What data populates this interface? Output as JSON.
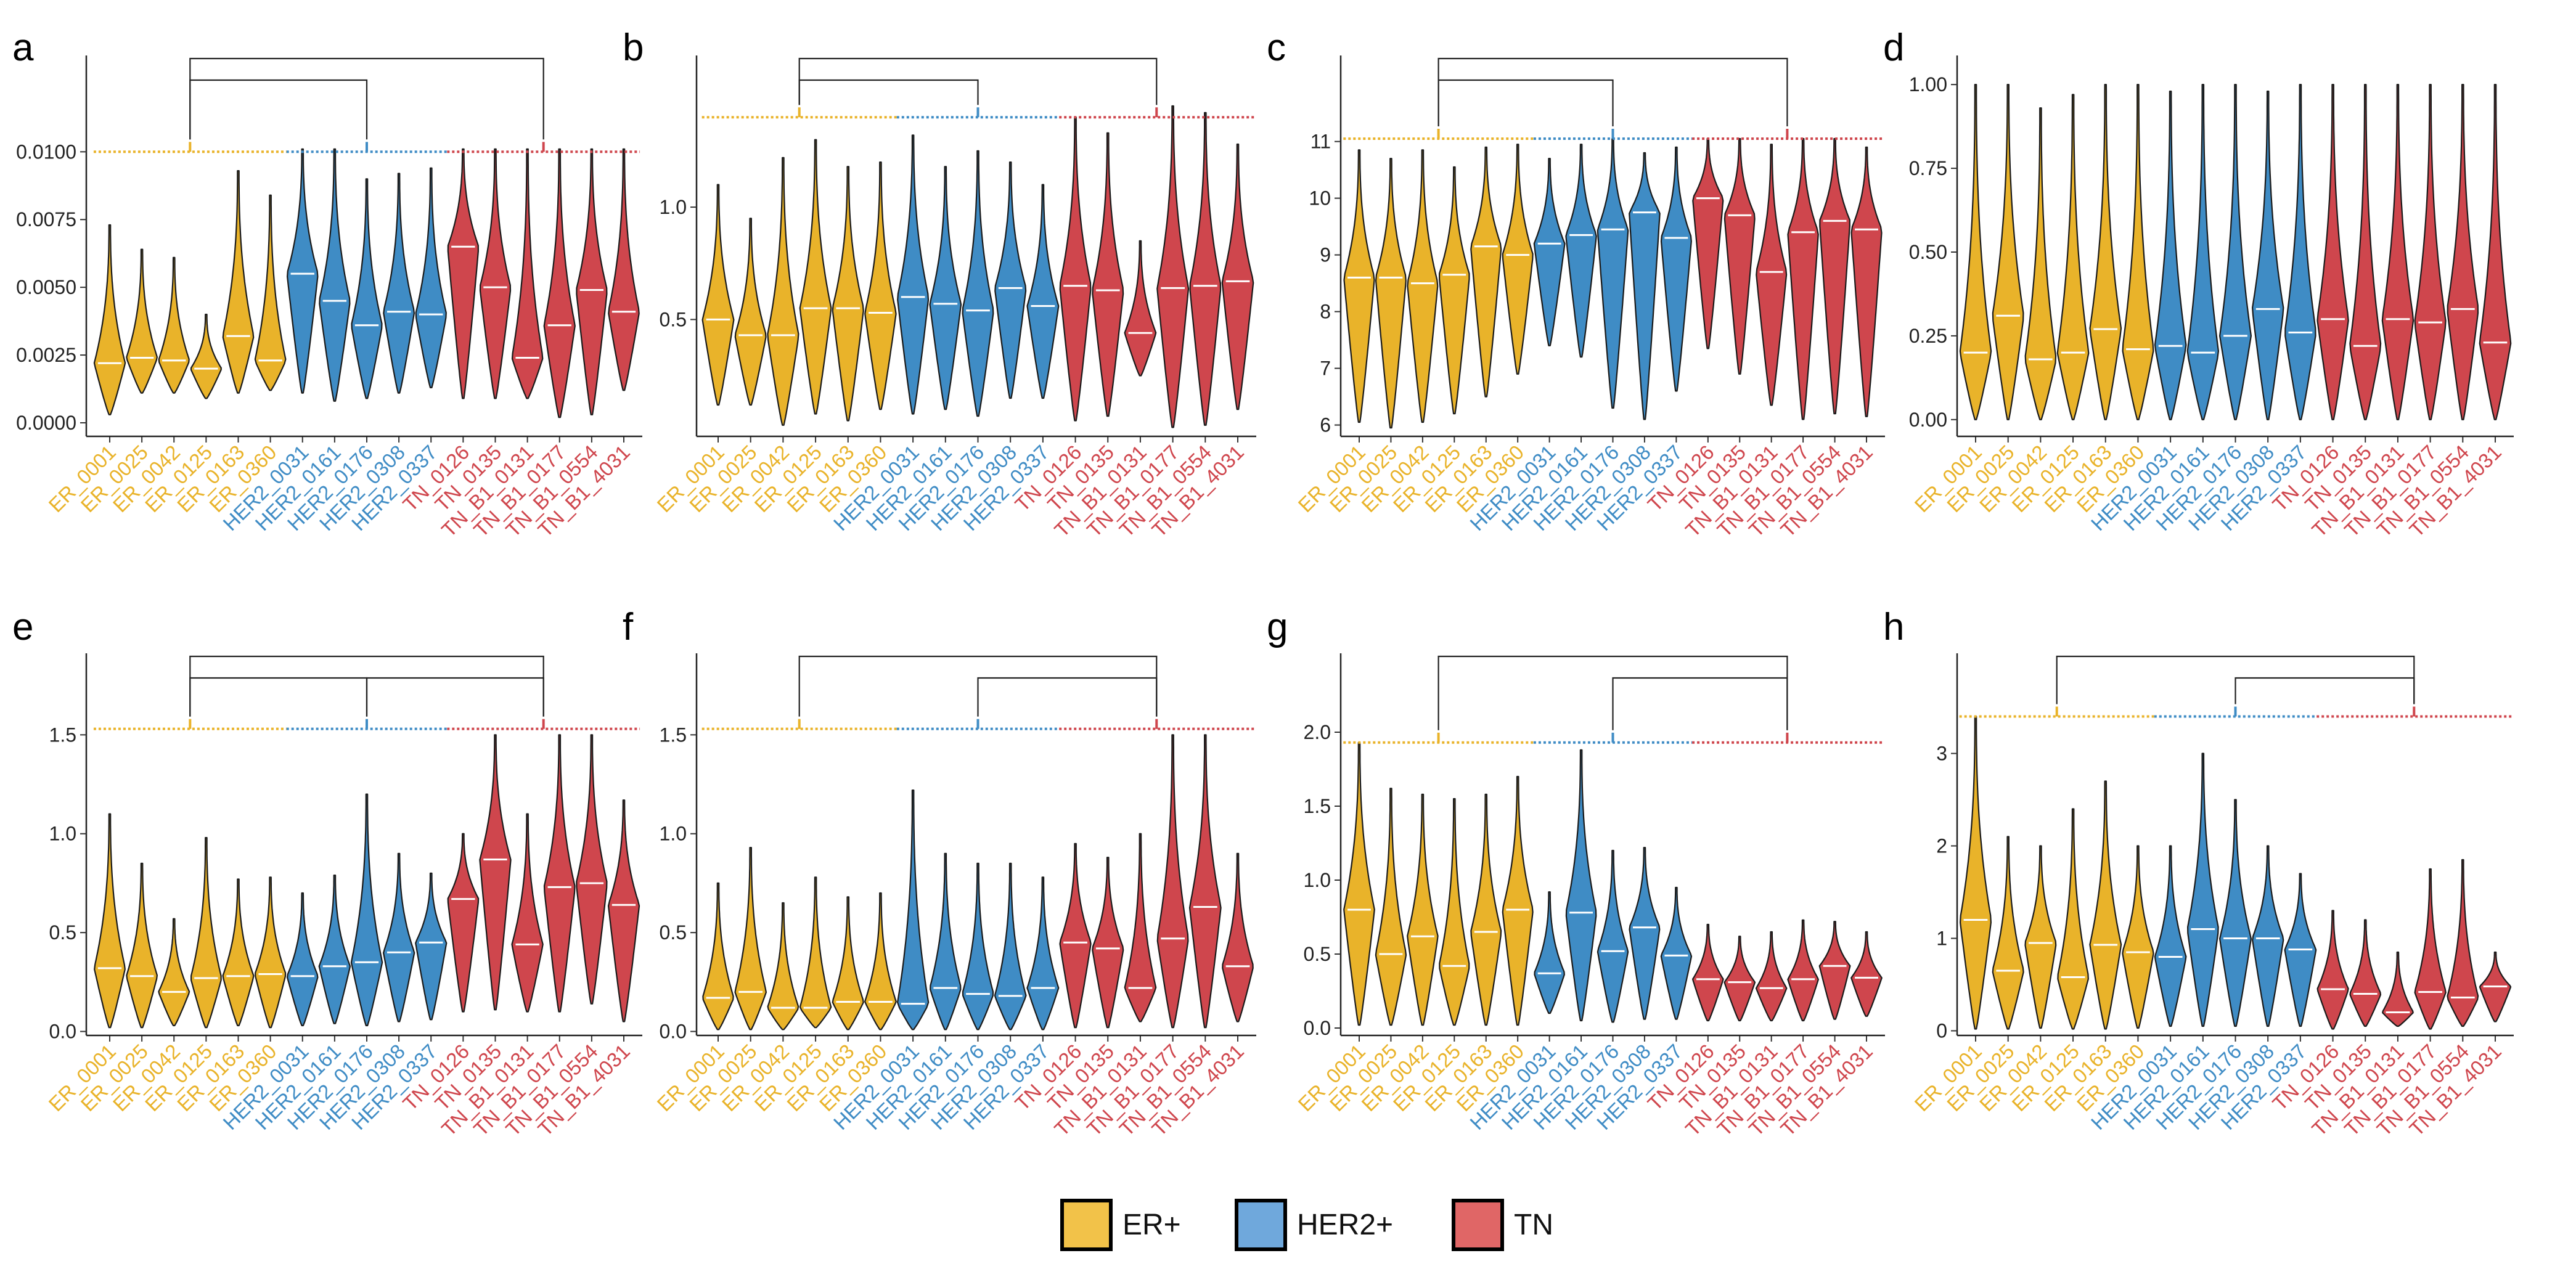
{
  "colors": {
    "ER": "#e9b32a",
    "HER2": "#3f8cc5",
    "TN": "#cf464d",
    "legend_ER": "#f2c249",
    "legend_HER2": "#6fa8dc",
    "legend_TN": "#e06666",
    "median_line": "#ffffff"
  },
  "legend": [
    {
      "label": "ER+",
      "group": "ER"
    },
    {
      "label": "HER2+",
      "group": "HER2"
    },
    {
      "label": "TN",
      "group": "TN"
    }
  ],
  "chart_data": [
    {
      "type": "violin",
      "title": "a",
      "categories": [
        "ER_0001",
        "ER_0025",
        "ER_0042",
        "ER_0125",
        "ER_0163",
        "ER_0360",
        "HER2_0031",
        "HER2_0161",
        "HER2_0176",
        "HER2_0308",
        "HER2_0337",
        "TN_0126",
        "TN_0135",
        "TN_B1_0131",
        "TN_B1_0177",
        "TN_B1_0554",
        "TN_B1_4031"
      ],
      "groups": [
        "ER",
        "ER",
        "ER",
        "ER",
        "ER",
        "ER",
        "HER2",
        "HER2",
        "HER2",
        "HER2",
        "HER2",
        "TN",
        "TN",
        "TN",
        "TN",
        "TN",
        "TN"
      ],
      "medians": [
        0.0022,
        0.0024,
        0.0023,
        0.002,
        0.0032,
        0.0023,
        0.0055,
        0.0045,
        0.0036,
        0.0041,
        0.004,
        0.0065,
        0.005,
        0.0024,
        0.0036,
        0.0049,
        0.0041
      ],
      "mins": [
        0.0003,
        0.0011,
        0.0011,
        0.0009,
        0.0011,
        0.0012,
        0.0011,
        0.0008,
        0.0009,
        0.0011,
        0.0013,
        0.0009,
        0.0009,
        0.0009,
        0.0002,
        0.0003,
        0.0012
      ],
      "maxs": [
        0.0073,
        0.0064,
        0.0061,
        0.004,
        0.0093,
        0.0084,
        0.0101,
        0.0101,
        0.009,
        0.0092,
        0.0094,
        0.0101,
        0.0101,
        0.0101,
        0.0101,
        0.0101,
        0.0101
      ],
      "yticks": [
        0.0,
        0.0025,
        0.005,
        0.0075,
        0.01
      ],
      "yticklabels": [
        "0.0000",
        "0.0025",
        "0.0050",
        "0.0075",
        "0.0100"
      ],
      "ylim": [
        -0.0005,
        0.0131
      ],
      "ref_level": 0.01,
      "brackets": [
        {
          "from": "ER",
          "to": "HER2",
          "tier": 1
        },
        {
          "from": "ER",
          "to": "TN",
          "tier": 2
        }
      ]
    },
    {
      "type": "violin",
      "title": "b",
      "categories": [
        "ER_0001",
        "ER_0025",
        "ER_0042",
        "ER_0125",
        "ER_0163",
        "ER_0360",
        "HER2_0031",
        "HER2_0161",
        "HER2_0176",
        "HER2_0308",
        "HER2_0337",
        "TN_0126",
        "TN_0135",
        "TN_B1_0131",
        "TN_B1_0177",
        "TN_B1_0554",
        "TN_B1_4031"
      ],
      "groups": [
        "ER",
        "ER",
        "ER",
        "ER",
        "ER",
        "ER",
        "HER2",
        "HER2",
        "HER2",
        "HER2",
        "HER2",
        "TN",
        "TN",
        "TN",
        "TN",
        "TN",
        "TN"
      ],
      "medians": [
        0.5,
        0.43,
        0.43,
        0.55,
        0.55,
        0.53,
        0.6,
        0.57,
        0.54,
        0.64,
        0.56,
        0.65,
        0.63,
        0.44,
        0.64,
        0.65,
        0.67
      ],
      "mins": [
        0.12,
        0.12,
        0.03,
        0.08,
        0.05,
        0.1,
        0.08,
        0.1,
        0.07,
        0.15,
        0.15,
        0.05,
        0.07,
        0.25,
        0.02,
        0.03,
        0.1
      ],
      "maxs": [
        1.1,
        0.95,
        1.22,
        1.3,
        1.18,
        1.2,
        1.32,
        1.18,
        1.25,
        1.2,
        1.1,
        1.4,
        1.33,
        0.85,
        1.45,
        1.42,
        1.28
      ],
      "yticks": [
        0.5,
        1.0
      ],
      "yticklabels": [
        "0.5",
        "1.0"
      ],
      "ylim": [
        -0.02,
        1.62
      ],
      "ref_level": 1.4,
      "brackets": [
        {
          "from": "ER",
          "to": "HER2",
          "tier": 1
        },
        {
          "from": "ER",
          "to": "TN",
          "tier": 2
        }
      ]
    },
    {
      "type": "violin",
      "title": "c",
      "categories": [
        "ER_0001",
        "ER_0025",
        "ER_0042",
        "ER_0125",
        "ER_0163",
        "ER_0360",
        "HER2_0031",
        "HER2_0161",
        "HER2_0176",
        "HER2_0308",
        "HER2_0337",
        "TN_0126",
        "TN_0135",
        "TN_B1_0131",
        "TN_B1_0177",
        "TN_B1_0554",
        "TN_B1_4031"
      ],
      "groups": [
        "ER",
        "ER",
        "ER",
        "ER",
        "ER",
        "ER",
        "HER2",
        "HER2",
        "HER2",
        "HER2",
        "HER2",
        "TN",
        "TN",
        "TN",
        "TN",
        "TN",
        "TN"
      ],
      "medians": [
        8.6,
        8.6,
        8.5,
        8.65,
        9.15,
        9.0,
        9.2,
        9.35,
        9.45,
        9.75,
        9.3,
        10.0,
        9.7,
        8.7,
        9.4,
        9.6,
        9.45
      ],
      "mins": [
        6.05,
        5.95,
        6.05,
        6.2,
        6.5,
        6.9,
        7.4,
        7.2,
        6.3,
        6.1,
        6.6,
        7.35,
        6.9,
        6.35,
        6.1,
        6.2,
        6.15
      ],
      "maxs": [
        10.85,
        10.7,
        10.85,
        10.55,
        10.9,
        10.95,
        10.7,
        10.95,
        11.05,
        10.8,
        10.9,
        11.05,
        11.05,
        10.95,
        11.05,
        11.05,
        10.9
      ],
      "yticks": [
        6,
        7,
        8,
        9,
        10,
        11
      ],
      "yticklabels": [
        "6",
        "7",
        "8",
        "9",
        "10",
        "11"
      ],
      "ylim": [
        5.8,
        12.3
      ],
      "ref_level": 11.05,
      "brackets": [
        {
          "from": "ER",
          "to": "HER2",
          "tier": 1
        },
        {
          "from": "ER",
          "to": "TN",
          "tier": 2
        }
      ]
    },
    {
      "type": "violin",
      "title": "d",
      "categories": [
        "ER_0001",
        "ER_0025",
        "ER_0042",
        "ER_0125",
        "ER_0163",
        "ER_0360",
        "HER2_0031",
        "HER2_0161",
        "HER2_0176",
        "HER2_0308",
        "HER2_0337",
        "TN_0126",
        "TN_0135",
        "TN_B1_0131",
        "TN_B1_0177",
        "TN_B1_0554",
        "TN_B1_4031"
      ],
      "groups": [
        "ER",
        "ER",
        "ER",
        "ER",
        "ER",
        "ER",
        "HER2",
        "HER2",
        "HER2",
        "HER2",
        "HER2",
        "TN",
        "TN",
        "TN",
        "TN",
        "TN",
        "TN"
      ],
      "medians": [
        0.2,
        0.31,
        0.18,
        0.2,
        0.27,
        0.21,
        0.22,
        0.2,
        0.25,
        0.33,
        0.26,
        0.3,
        0.22,
        0.3,
        0.29,
        0.33,
        0.23
      ],
      "mins": [
        0,
        0,
        0,
        0,
        0,
        0,
        0,
        0,
        0,
        0,
        0,
        0,
        0,
        0,
        0,
        0,
        0
      ],
      "maxs": [
        1.0,
        1.0,
        0.93,
        0.97,
        1.0,
        1.0,
        0.98,
        1.0,
        1.0,
        0.98,
        1.0,
        1.0,
        1.0,
        1.0,
        1.0,
        1.0,
        1.0
      ],
      "yticks": [
        0,
        0.25,
        0.5,
        0.75,
        1.0
      ],
      "yticklabels": [
        "0.00",
        "0.25",
        "0.50",
        "0.75",
        "1.00"
      ],
      "ylim": [
        -0.05,
        1.05
      ],
      "ref_level": null,
      "brackets": []
    },
    {
      "type": "violin",
      "title": "e",
      "categories": [
        "ER_0001",
        "ER_0025",
        "ER_0042",
        "ER_0125",
        "ER_0163",
        "ER_0360",
        "HER2_0031",
        "HER2_0161",
        "HER2_0176",
        "HER2_0308",
        "HER2_0337",
        "TN_0126",
        "TN_0135",
        "TN_B1_0131",
        "TN_B1_0177",
        "TN_B1_0554",
        "TN_B1_4031"
      ],
      "groups": [
        "ER",
        "ER",
        "ER",
        "ER",
        "ER",
        "ER",
        "HER2",
        "HER2",
        "HER2",
        "HER2",
        "HER2",
        "TN",
        "TN",
        "TN",
        "TN",
        "TN",
        "TN"
      ],
      "medians": [
        0.32,
        0.28,
        0.2,
        0.27,
        0.28,
        0.29,
        0.28,
        0.33,
        0.35,
        0.4,
        0.45,
        0.67,
        0.87,
        0.44,
        0.73,
        0.75,
        0.64
      ],
      "mins": [
        0.02,
        0.02,
        0.03,
        0.02,
        0.03,
        0.02,
        0.03,
        0.04,
        0.03,
        0.05,
        0.06,
        0.1,
        0.11,
        0.1,
        0.1,
        0.14,
        0.05
      ],
      "maxs": [
        1.1,
        0.85,
        0.57,
        0.98,
        0.77,
        0.78,
        0.7,
        0.79,
        1.2,
        0.9,
        0.8,
        1.0,
        1.5,
        1.1,
        1.5,
        1.5,
        1.17
      ],
      "yticks": [
        0,
        0.5,
        1.0,
        1.5
      ],
      "yticklabels": [
        "0.0",
        "0.5",
        "1.0",
        "1.5"
      ],
      "ylim": [
        -0.02,
        1.85
      ],
      "ref_level": 1.53,
      "brackets": [
        {
          "from": "ER",
          "to": "HER2",
          "tier": 1
        },
        {
          "from": "HER2",
          "to": "TN",
          "tier": 1
        },
        {
          "from": "ER",
          "to": "TN",
          "tier": 2
        }
      ]
    },
    {
      "type": "violin",
      "title": "f",
      "categories": [
        "ER_0001",
        "ER_0025",
        "ER_0042",
        "ER_0125",
        "ER_0163",
        "ER_0360",
        "HER2_0031",
        "HER2_0161",
        "HER2_0176",
        "HER2_0308",
        "HER2_0337",
        "TN_0126",
        "TN_0135",
        "TN_B1_0131",
        "TN_B1_0177",
        "TN_B1_0554",
        "TN_B1_4031"
      ],
      "groups": [
        "ER",
        "ER",
        "ER",
        "ER",
        "ER",
        "ER",
        "HER2",
        "HER2",
        "HER2",
        "HER2",
        "HER2",
        "TN",
        "TN",
        "TN",
        "TN",
        "TN",
        "TN"
      ],
      "medians": [
        0.17,
        0.2,
        0.12,
        0.12,
        0.15,
        0.15,
        0.14,
        0.22,
        0.19,
        0.18,
        0.22,
        0.45,
        0.42,
        0.22,
        0.47,
        0.63,
        0.33
      ],
      "mins": [
        0.01,
        0.01,
        0.01,
        0.02,
        0.01,
        0.01,
        0.01,
        0.01,
        0.01,
        0.01,
        0.01,
        0.02,
        0.02,
        0.05,
        0.02,
        0.02,
        0.05
      ],
      "maxs": [
        0.75,
        0.93,
        0.65,
        0.78,
        0.68,
        0.7,
        1.22,
        0.9,
        0.85,
        0.85,
        0.78,
        0.95,
        0.88,
        1.0,
        1.5,
        1.5,
        0.9
      ],
      "yticks": [
        0,
        0.5,
        1.0,
        1.5
      ],
      "yticklabels": [
        "0.0",
        "0.5",
        "1.0",
        "1.5"
      ],
      "ylim": [
        -0.02,
        1.85
      ],
      "ref_level": 1.53,
      "brackets": [
        {
          "from": "HER2",
          "to": "TN",
          "tier": 1
        },
        {
          "from": "ER",
          "to": "TN",
          "tier": 2
        }
      ]
    },
    {
      "type": "violin",
      "title": "g",
      "categories": [
        "ER_0001",
        "ER_0025",
        "ER_0042",
        "ER_0125",
        "ER_0163",
        "ER_0360",
        "HER2_0031",
        "HER2_0161",
        "HER2_0176",
        "HER2_0308",
        "HER2_0337",
        "TN_0126",
        "TN_0135",
        "TN_B1_0131",
        "TN_B1_0177",
        "TN_B1_0554",
        "TN_B1_4031"
      ],
      "groups": [
        "ER",
        "ER",
        "ER",
        "ER",
        "ER",
        "ER",
        "HER2",
        "HER2",
        "HER2",
        "HER2",
        "HER2",
        "TN",
        "TN",
        "TN",
        "TN",
        "TN",
        "TN"
      ],
      "medians": [
        0.8,
        0.5,
        0.62,
        0.42,
        0.65,
        0.8,
        0.37,
        0.78,
        0.52,
        0.68,
        0.49,
        0.33,
        0.31,
        0.27,
        0.33,
        0.42,
        0.34
      ],
      "mins": [
        0.02,
        0.02,
        0.02,
        0.02,
        0.02,
        0.02,
        0.1,
        0.05,
        0.04,
        0.06,
        0.06,
        0.05,
        0.05,
        0.05,
        0.05,
        0.06,
        0.08
      ],
      "maxs": [
        1.93,
        1.62,
        1.58,
        1.55,
        1.58,
        1.7,
        0.92,
        1.88,
        1.2,
        1.22,
        0.95,
        0.7,
        0.62,
        0.65,
        0.73,
        0.72,
        0.65
      ],
      "yticks": [
        0,
        0.5,
        1.0,
        1.5,
        2.0
      ],
      "yticklabels": [
        "0.0",
        "0.5",
        "1.0",
        "1.5",
        "2.0"
      ],
      "ylim": [
        -0.05,
        2.45
      ],
      "ref_level": 1.93,
      "brackets": [
        {
          "from": "HER2",
          "to": "TN",
          "tier": 1
        },
        {
          "from": "ER",
          "to": "TN",
          "tier": 2
        }
      ]
    },
    {
      "type": "violin",
      "title": "h",
      "categories": [
        "ER_0001",
        "ER_0025",
        "ER_0042",
        "ER_0125",
        "ER_0163",
        "ER_0360",
        "HER2_0031",
        "HER2_0161",
        "HER2_0176",
        "HER2_0308",
        "HER2_0337",
        "TN_0126",
        "TN_0135",
        "TN_B1_0131",
        "TN_B1_0177",
        "TN_B1_0554",
        "TN_B1_4031"
      ],
      "groups": [
        "ER",
        "ER",
        "ER",
        "ER",
        "ER",
        "ER",
        "HER2",
        "HER2",
        "HER2",
        "HER2",
        "HER2",
        "TN",
        "TN",
        "TN",
        "TN",
        "TN",
        "TN"
      ],
      "medians": [
        1.2,
        0.65,
        0.95,
        0.58,
        0.93,
        0.85,
        0.8,
        1.1,
        1.0,
        1.0,
        0.88,
        0.45,
        0.4,
        0.2,
        0.42,
        0.36,
        0.48
      ],
      "mins": [
        0.02,
        0.02,
        0.03,
        0.02,
        0.02,
        0.03,
        0.05,
        0.05,
        0.05,
        0.05,
        0.05,
        0.02,
        0.05,
        0.05,
        0.02,
        0.05,
        0.1
      ],
      "maxs": [
        3.4,
        2.1,
        2.0,
        2.4,
        2.7,
        2.0,
        2.0,
        3.0,
        2.5,
        2.0,
        1.7,
        1.3,
        1.2,
        0.85,
        1.75,
        1.85,
        0.85
      ],
      "yticks": [
        0,
        1,
        2,
        3
      ],
      "yticklabels": [
        "0",
        "1",
        "2",
        "3"
      ],
      "ylim": [
        -0.05,
        3.95
      ],
      "ref_level": 3.4,
      "brackets": [
        {
          "from": "HER2",
          "to": "TN",
          "tier": 1
        },
        {
          "from": "ER",
          "to": "TN",
          "tier": 2
        }
      ]
    }
  ]
}
